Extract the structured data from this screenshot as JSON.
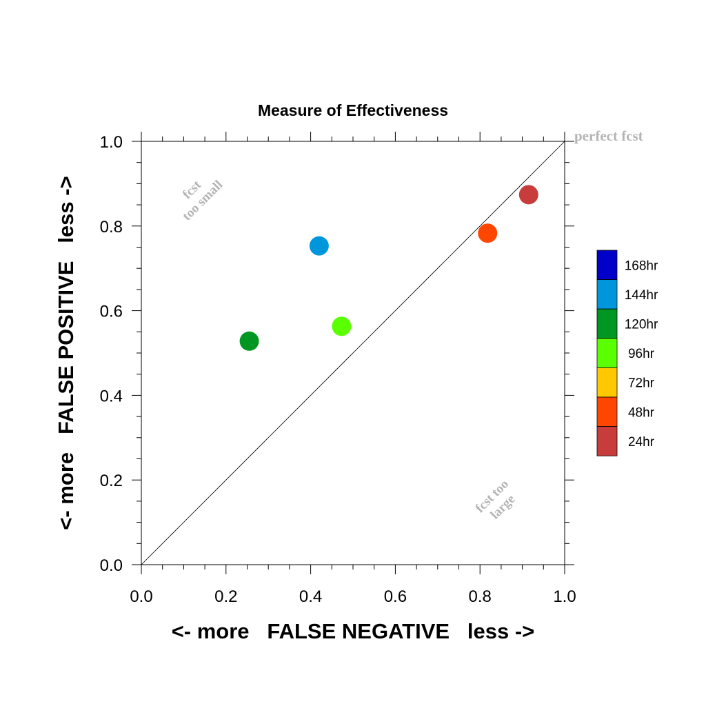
{
  "chart_data": {
    "type": "scatter",
    "title": "Measure of Effectiveness",
    "xlabel": "<- more   FALSE NEGATIVE   less ->",
    "ylabel": "<- more   FALSE POSITIVE   less ->",
    "xlim": [
      0.0,
      1.0
    ],
    "ylim": [
      0.0,
      1.0
    ],
    "x_ticks": [
      "0.0",
      "0.2",
      "0.4",
      "0.6",
      "0.8",
      "1.0"
    ],
    "y_ticks": [
      "0.0",
      "0.2",
      "0.4",
      "0.6",
      "0.8",
      "1.0"
    ],
    "grid": false,
    "diagonal_line": true,
    "annotations": {
      "perfect": "perfect fcst",
      "small_line1": "fcst",
      "small_line2": "too small",
      "large_line1": "fcst too",
      "large_line2": "large"
    },
    "legend_position": "right",
    "legend": [
      {
        "label": "168hr",
        "color": "#0000c8"
      },
      {
        "label": "144hr",
        "color": "#0096dc"
      },
      {
        "label": "120hr",
        "color": "#009622"
      },
      {
        "label": "96hr",
        "color": "#5aff00"
      },
      {
        "label": "72hr",
        "color": "#ffc800"
      },
      {
        "label": "48hr",
        "color": "#ff4600"
      },
      {
        "label": "24hr",
        "color": "#c83c3c"
      }
    ],
    "points": [
      {
        "series": "144hr",
        "x": 0.42,
        "y": 0.753,
        "color": "#0096dc"
      },
      {
        "series": "120hr",
        "x": 0.255,
        "y": 0.528,
        "color": "#009622"
      },
      {
        "series": "96hr",
        "x": 0.473,
        "y": 0.563,
        "color": "#5aff00"
      },
      {
        "series": "48hr",
        "x": 0.818,
        "y": 0.783,
        "color": "#ff4600"
      },
      {
        "series": "24hr",
        "x": 0.915,
        "y": 0.874,
        "color": "#c83c3c"
      }
    ]
  }
}
